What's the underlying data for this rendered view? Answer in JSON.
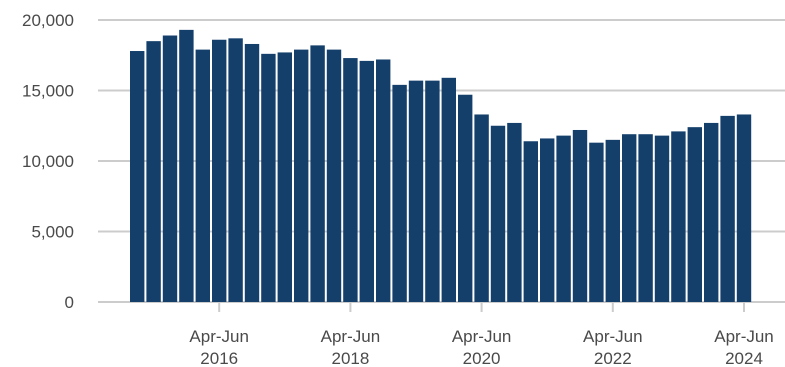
{
  "chart_data": {
    "type": "bar",
    "title": "",
    "xlabel": "",
    "ylabel": "",
    "ylim": [
      0,
      20000
    ],
    "grid": true,
    "bar_color": "#143f6b",
    "y_ticks": [
      {
        "value": 0,
        "label": "0"
      },
      {
        "value": 5000,
        "label": "5,000"
      },
      {
        "value": 10000,
        "label": "10,000"
      },
      {
        "value": 15000,
        "label": "15,000"
      },
      {
        "value": 20000,
        "label": "20,000"
      }
    ],
    "x_ticks": [
      {
        "index": 5,
        "line1": "Apr-Jun",
        "line2": "2016"
      },
      {
        "index": 13,
        "line1": "Apr-Jun",
        "line2": "2018"
      },
      {
        "index": 21,
        "line1": "Apr-Jun",
        "line2": "2020"
      },
      {
        "index": 29,
        "line1": "Apr-Jun",
        "line2": "2022"
      },
      {
        "index": 37,
        "line1": "Apr-Jun",
        "line2": "2024"
      }
    ],
    "values": [
      17800,
      18500,
      18900,
      19300,
      17900,
      18600,
      18700,
      18300,
      17600,
      17700,
      17900,
      18200,
      17900,
      17300,
      17100,
      17200,
      15400,
      15700,
      15700,
      15900,
      14700,
      13300,
      12500,
      12700,
      11400,
      11600,
      11800,
      12200,
      11300,
      11500,
      11900,
      11900,
      11800,
      12100,
      12400,
      12700,
      13200,
      13300
    ]
  }
}
